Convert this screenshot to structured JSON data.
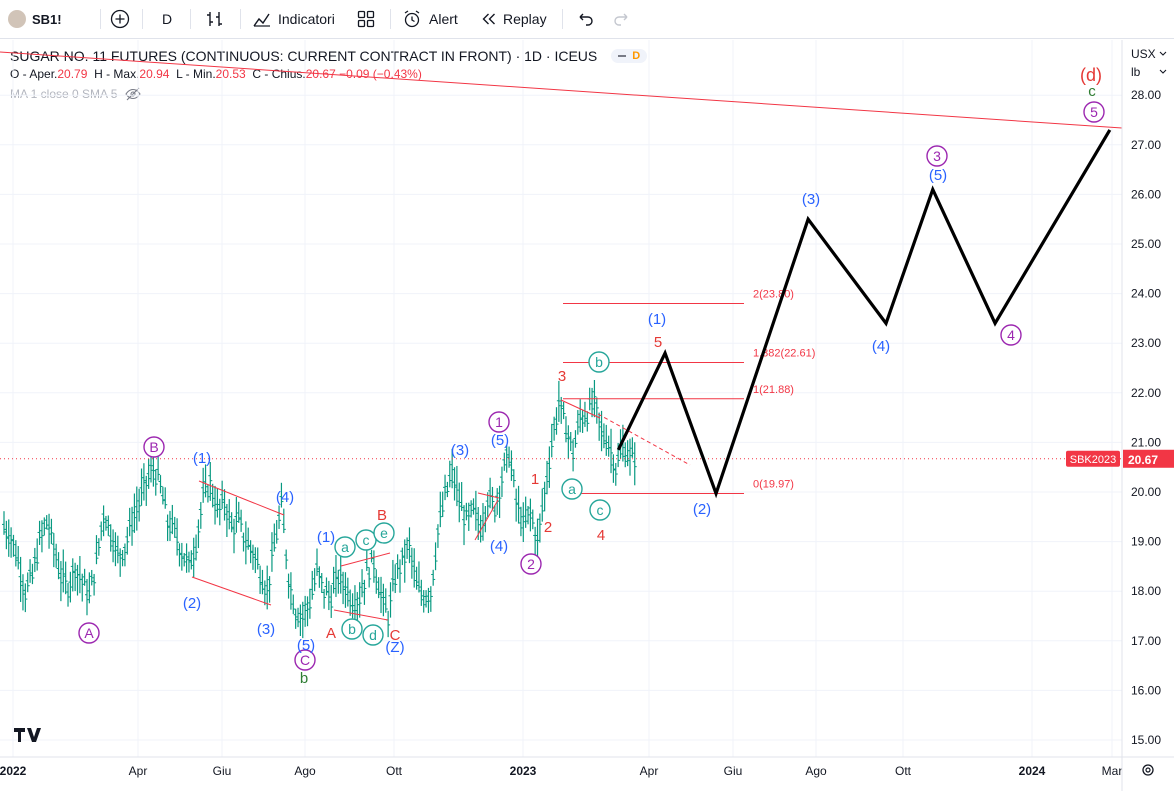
{
  "toolbar": {
    "symbol": "SB1!",
    "interval": "D",
    "indicators_label": "Indicatori",
    "alert_label": "Alert",
    "replay_label": "Replay"
  },
  "header": {
    "title": "SUGAR NO. 11 FUTURES (CONTINUOUS: CURRENT CONTRACT IN FRONT) · 1D · ICEUS",
    "badge": "D",
    "ohlc": {
      "o_label": "O - Aper.",
      "o": "20.79",
      "h_label": "H - Max.",
      "h": "20.94",
      "l_label": "L - Min.",
      "l": "20.53",
      "c_label": "C - Chius.",
      "c": "20.67",
      "change": "−0.09 (−0.43%)"
    },
    "indicator": "MA 1 close 0 SMA 5"
  },
  "axis": {
    "currency": "USX",
    "unit": "lb",
    "price_tag_label": "SBK2023",
    "price_tag_value": "20.67",
    "x_ticks": [
      "2022",
      "Apr",
      "Giu",
      "Ago",
      "Ott",
      "2023",
      "Apr",
      "Giu",
      "Ago",
      "Ott",
      "2024",
      "Mar"
    ]
  },
  "colors": {
    "blue": "#2962ff",
    "red": "#e53935",
    "purple": "#9c27b0",
    "teal": "#26a69a",
    "green": "#2e7d32",
    "bar": "#089981",
    "price_tag": "#f23645"
  },
  "chart_data": {
    "type": "line",
    "title": "SUGAR NO. 11 FUTURES (CONTINUOUS: CURRENT CONTRACT IN FRONT)",
    "ylim": [
      14.7,
      29.0
    ],
    "y_ticks": [
      15,
      16,
      17,
      18,
      19,
      20,
      21,
      22,
      23,
      24,
      25,
      26,
      27,
      28
    ],
    "last_price": 20.67,
    "price_bars": [
      19.3,
      19.1,
      18.6,
      18.0,
      18.3,
      19.0,
      19.4,
      18.9,
      18.3,
      18.1,
      18.5,
      18.2,
      17.9,
      18.6,
      19.6,
      19.2,
      18.7,
      18.9,
      19.4,
      19.8,
      20.2,
      20.5,
      20.1,
      19.4,
      19.2,
      18.8,
      18.5,
      19.0,
      19.9,
      20.2,
      19.6,
      19.8,
      19.3,
      19.4,
      19.0,
      18.8,
      18.4,
      18.0,
      18.9,
      19.7,
      18.3,
      17.6,
      17.5,
      17.8,
      18.4,
      18.0,
      17.9,
      18.3,
      18.1,
      17.8,
      17.9,
      18.4,
      18.6,
      17.9,
      17.5,
      18.3,
      18.6,
      18.9,
      18.1,
      17.9,
      18.0,
      19.2,
      19.9,
      20.4,
      19.8,
      19.4,
      19.6,
      19.3,
      19.9,
      19.7,
      20.3,
      20.8,
      19.8,
      19.3,
      19.6,
      19.0,
      20.0,
      21.0,
      21.8,
      21.3,
      20.8,
      21.5,
      21.6,
      21.8,
      21.2,
      21.0,
      20.5,
      20.9,
      20.7
    ],
    "fib_levels": [
      {
        "label": "2(23.80)",
        "value": 23.8
      },
      {
        "label": "1.382(22.61)",
        "value": 22.61
      },
      {
        "label": "1(21.88)",
        "value": 21.88
      },
      {
        "label": "0(19.97)",
        "value": 19.97
      }
    ],
    "projection": [
      {
        "date": "2023-03-10",
        "price": 20.85
      },
      {
        "date": "2023-04-12",
        "price": 22.8
      },
      {
        "date": "2023-05-18",
        "price": 19.97
      },
      {
        "date": "2023-07-22",
        "price": 25.5
      },
      {
        "date": "2023-09-15",
        "price": 23.4
      },
      {
        "date": "2023-10-18",
        "price": 26.1
      },
      {
        "date": "2023-12-01",
        "price": 23.4
      },
      {
        "date": "2024-02-20",
        "price": 27.3
      }
    ],
    "wave_labels": [
      {
        "text": "A",
        "style": "circle",
        "color": "purple"
      },
      {
        "text": "B",
        "style": "circle",
        "color": "purple"
      },
      {
        "text": "C",
        "style": "circle",
        "color": "purple"
      },
      {
        "text": "b",
        "style": "plain",
        "color": "green"
      },
      {
        "text": "(1)",
        "style": "plain",
        "color": "blue"
      },
      {
        "text": "(2)",
        "style": "plain",
        "color": "blue"
      },
      {
        "text": "(3)",
        "style": "plain",
        "color": "blue"
      },
      {
        "text": "(4)",
        "style": "plain",
        "color": "blue"
      },
      {
        "text": "(5)",
        "style": "plain",
        "color": "blue"
      },
      {
        "text": "(1)",
        "style": "plain",
        "color": "blue"
      },
      {
        "text": "a",
        "style": "circle",
        "color": "teal"
      },
      {
        "text": "c",
        "style": "circle",
        "color": "teal"
      },
      {
        "text": "e",
        "style": "circle",
        "color": "teal"
      },
      {
        "text": "b",
        "style": "circle",
        "color": "teal"
      },
      {
        "text": "d",
        "style": "circle",
        "color": "teal"
      },
      {
        "text": "A",
        "style": "plain",
        "color": "red"
      },
      {
        "text": "B",
        "style": "plain",
        "color": "red"
      },
      {
        "text": "C",
        "style": "plain",
        "color": "red"
      },
      {
        "text": "(Z)",
        "style": "plain",
        "color": "blue"
      },
      {
        "text": "(3)",
        "style": "plain",
        "color": "blue"
      },
      {
        "text": "(4)",
        "style": "plain",
        "color": "blue"
      },
      {
        "text": "(5)",
        "style": "plain",
        "color": "blue"
      },
      {
        "text": "1",
        "style": "circle",
        "color": "purple"
      },
      {
        "text": "2",
        "style": "circle",
        "color": "purple"
      },
      {
        "text": "1",
        "style": "plain",
        "color": "red"
      },
      {
        "text": "2",
        "style": "plain",
        "color": "red"
      },
      {
        "text": "3",
        "style": "plain",
        "color": "red"
      },
      {
        "text": "4",
        "style": "plain",
        "color": "red"
      },
      {
        "text": "5",
        "style": "plain",
        "color": "red"
      },
      {
        "text": "b",
        "style": "circle",
        "color": "teal"
      },
      {
        "text": "a",
        "style": "circle",
        "color": "teal"
      },
      {
        "text": "c",
        "style": "circle",
        "color": "teal"
      },
      {
        "text": "(1)",
        "style": "plain",
        "color": "blue"
      },
      {
        "text": "(2)",
        "style": "plain",
        "color": "blue"
      },
      {
        "text": "(3)",
        "style": "plain",
        "color": "blue"
      },
      {
        "text": "(4)",
        "style": "plain",
        "color": "blue"
      },
      {
        "text": "3",
        "style": "circle",
        "color": "purple"
      },
      {
        "text": "(5)",
        "style": "plain",
        "color": "blue"
      },
      {
        "text": "4",
        "style": "circle",
        "color": "purple"
      },
      {
        "text": "(d)",
        "style": "plain",
        "color": "red"
      },
      {
        "text": "c",
        "style": "plain",
        "color": "green"
      },
      {
        "text": "5",
        "style": "circle",
        "color": "purple"
      }
    ]
  }
}
